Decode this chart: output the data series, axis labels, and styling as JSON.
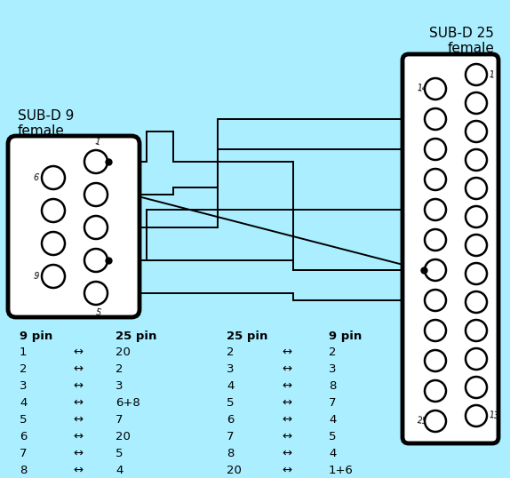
{
  "bg_color": "#aaeeff",
  "line_color": "#000000",
  "connector_fill": "#ffffff",
  "title_9": "SUB-D 9\nfemale",
  "title_25": "SUB-D 25\nfemale",
  "pin_table_left": [
    [
      "1",
      "20"
    ],
    [
      "2",
      "2"
    ],
    [
      "3",
      "3"
    ],
    [
      "4",
      "6+8"
    ],
    [
      "5",
      "7"
    ],
    [
      "6",
      "20"
    ],
    [
      "7",
      "5"
    ],
    [
      "8",
      "4"
    ]
  ],
  "pin_table_right": [
    [
      "2",
      "2"
    ],
    [
      "3",
      "3"
    ],
    [
      "4",
      "8"
    ],
    [
      "5",
      "7"
    ],
    [
      "6",
      "4"
    ],
    [
      "7",
      "5"
    ],
    [
      "8",
      "4"
    ],
    [
      "20",
      "1+6"
    ]
  ]
}
